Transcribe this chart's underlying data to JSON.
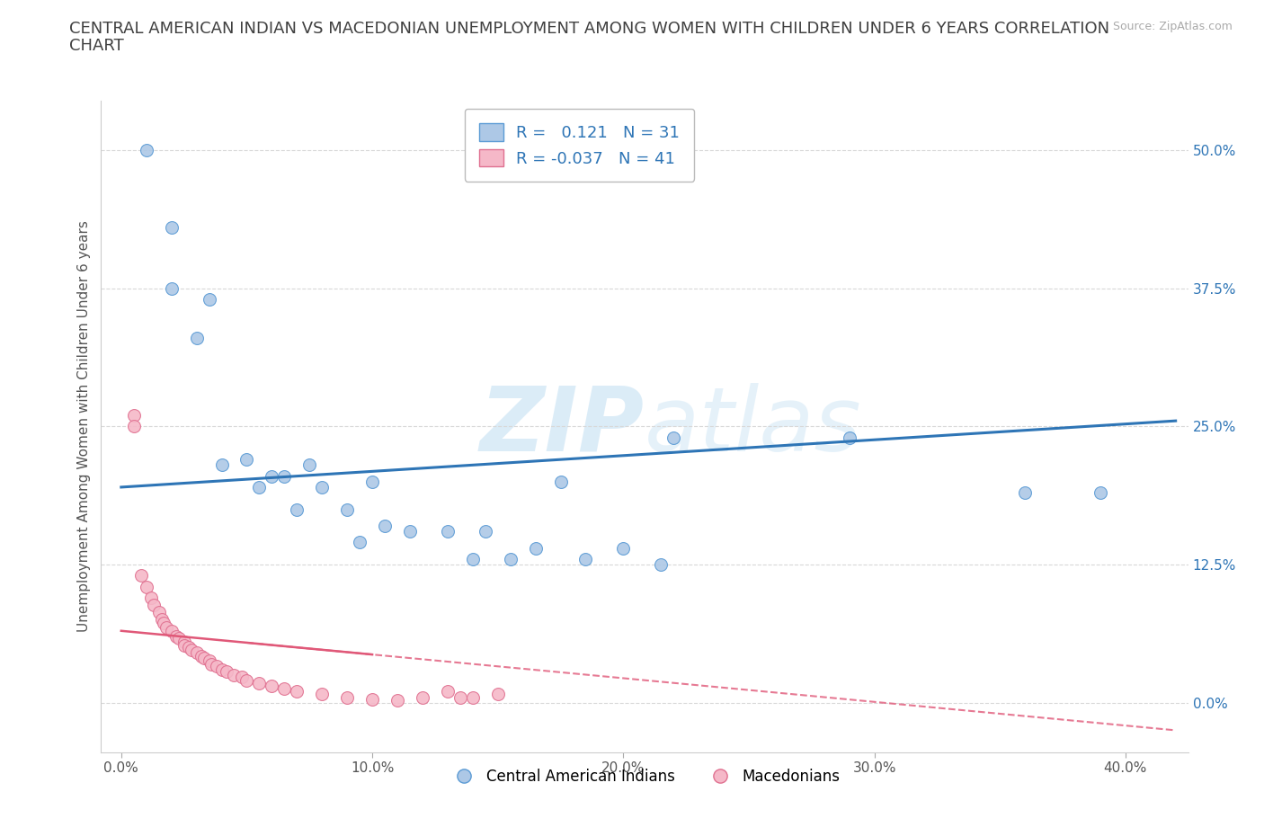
{
  "title_line1": "CENTRAL AMERICAN INDIAN VS MACEDONIAN UNEMPLOYMENT AMONG WOMEN WITH CHILDREN UNDER 6 YEARS CORRELATION",
  "title_line2": "CHART",
  "source": "Source: ZipAtlas.com",
  "ylabel": "Unemployment Among Women with Children Under 6 years",
  "xlabel_ticks": [
    "0.0%",
    "10.0%",
    "20.0%",
    "30.0%",
    "40.0%"
  ],
  "xlabel_vals": [
    0.0,
    0.1,
    0.2,
    0.3,
    0.4
  ],
  "ylabel_ticks": [
    "0.0%",
    "12.5%",
    "25.0%",
    "37.5%",
    "50.0%"
  ],
  "ylabel_vals": [
    0.0,
    0.125,
    0.25,
    0.375,
    0.5
  ],
  "xlim": [
    -0.008,
    0.425
  ],
  "ylim": [
    -0.045,
    0.545
  ],
  "blue_R": 0.121,
  "blue_N": 31,
  "pink_R": -0.037,
  "pink_N": 41,
  "blue_color": "#adc8e6",
  "pink_color": "#f5b8c8",
  "blue_edge_color": "#5b9bd5",
  "pink_edge_color": "#e07090",
  "blue_line_color": "#2e75b6",
  "pink_line_color": "#e05878",
  "watermark_color": "#cde5f5",
  "legend_text_color": "#2e75b6",
  "title_color": "#404040",
  "source_color": "#aaaaaa",
  "grid_color": "#d8d8d8",
  "blue_scatter_x": [
    0.01,
    0.02,
    0.02,
    0.03,
    0.035,
    0.04,
    0.05,
    0.055,
    0.06,
    0.065,
    0.07,
    0.075,
    0.08,
    0.09,
    0.095,
    0.1,
    0.105,
    0.115,
    0.13,
    0.14,
    0.145,
    0.155,
    0.165,
    0.175,
    0.185,
    0.2,
    0.215,
    0.22,
    0.29,
    0.36,
    0.39
  ],
  "blue_scatter_y": [
    0.5,
    0.43,
    0.375,
    0.33,
    0.365,
    0.215,
    0.22,
    0.195,
    0.205,
    0.205,
    0.175,
    0.215,
    0.195,
    0.175,
    0.145,
    0.2,
    0.16,
    0.155,
    0.155,
    0.13,
    0.155,
    0.13,
    0.14,
    0.2,
    0.13,
    0.14,
    0.125,
    0.24,
    0.24,
    0.19,
    0.19
  ],
  "pink_scatter_x": [
    0.005,
    0.008,
    0.01,
    0.012,
    0.015,
    0.015,
    0.017,
    0.018,
    0.02,
    0.02,
    0.022,
    0.023,
    0.025,
    0.025,
    0.026,
    0.028,
    0.03,
    0.03,
    0.032,
    0.033,
    0.035,
    0.035,
    0.037,
    0.038,
    0.04,
    0.042,
    0.044,
    0.046,
    0.048,
    0.05,
    0.052,
    0.055,
    0.06,
    0.065,
    0.07,
    0.075,
    0.08,
    0.09,
    0.1,
    0.11,
    0.12
  ],
  "pink_scatter_x2": [
    0.005,
    0.005,
    0.008,
    0.01,
    0.012,
    0.013,
    0.015,
    0.016,
    0.017,
    0.018,
    0.02,
    0.022,
    0.023,
    0.025,
    0.025,
    0.027,
    0.028,
    0.03,
    0.032,
    0.033,
    0.035,
    0.036,
    0.038,
    0.04,
    0.042,
    0.045,
    0.048,
    0.05,
    0.055,
    0.06,
    0.065,
    0.07,
    0.08,
    0.09,
    0.1,
    0.11,
    0.12,
    0.13,
    0.135,
    0.14,
    0.15
  ],
  "pink_scatter_y": [
    0.26,
    0.25,
    0.115,
    0.105,
    0.095,
    0.088,
    0.082,
    0.075,
    0.072,
    0.068,
    0.065,
    0.06,
    0.058,
    0.055,
    0.052,
    0.05,
    0.048,
    0.045,
    0.042,
    0.04,
    0.038,
    0.035,
    0.033,
    0.03,
    0.028,
    0.025,
    0.023,
    0.02,
    0.018,
    0.015,
    0.013,
    0.01,
    0.008,
    0.005,
    0.003,
    0.002,
    0.005,
    0.01,
    0.005,
    0.005,
    0.008
  ],
  "legend_label_blue": "Central American Indians",
  "legend_label_pink": "Macedonians",
  "title_fontsize": 13,
  "axis_label_fontsize": 11,
  "tick_fontsize": 11,
  "background_color": "#ffffff",
  "marker_size": 100
}
